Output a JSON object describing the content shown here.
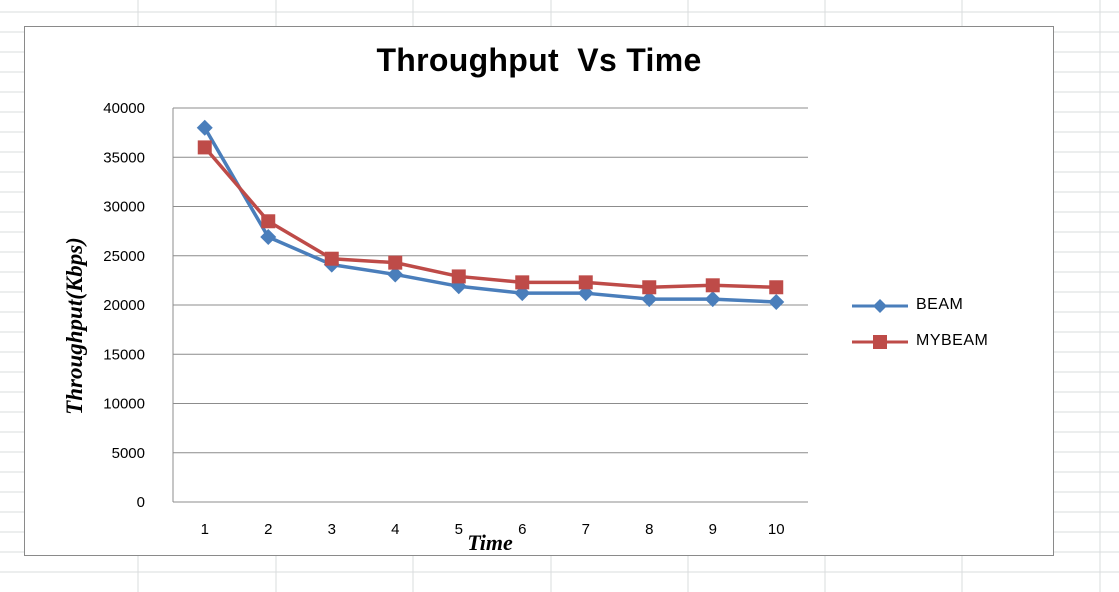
{
  "chart_data": {
    "type": "line",
    "title": "Throughput  Vs Time",
    "xlabel": "Time",
    "ylabel": "Throughput(Kbps)",
    "categories": [
      "1",
      "2",
      "3",
      "4",
      "5",
      "6",
      "7",
      "8",
      "9",
      "10"
    ],
    "y_ticks": [
      "0",
      "5000",
      "10000",
      "15000",
      "20000",
      "25000",
      "30000",
      "35000",
      "40000"
    ],
    "ylim": [
      0,
      40000
    ],
    "grid": "horizontal",
    "legend_position": "right",
    "series": [
      {
        "name": "BEAM",
        "color": "#4a7ebb",
        "marker": "diamond",
        "values": [
          38000,
          26900,
          24100,
          23100,
          21900,
          21200,
          21200,
          20600,
          20600,
          20300
        ]
      },
      {
        "name": "MYBEAM",
        "color": "#be4b48",
        "marker": "square",
        "values": [
          36000,
          28500,
          24700,
          24300,
          22900,
          22300,
          22300,
          21800,
          22000,
          21800
        ]
      }
    ]
  }
}
